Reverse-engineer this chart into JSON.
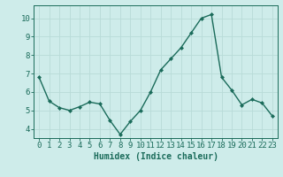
{
  "x": [
    0,
    1,
    2,
    3,
    4,
    5,
    6,
    7,
    8,
    9,
    10,
    11,
    12,
    13,
    14,
    15,
    16,
    17,
    18,
    19,
    20,
    21,
    22,
    23
  ],
  "y": [
    6.8,
    5.5,
    5.15,
    5.0,
    5.2,
    5.45,
    5.35,
    4.45,
    3.7,
    4.4,
    5.0,
    6.0,
    7.2,
    7.8,
    8.4,
    9.2,
    10.0,
    10.2,
    6.8,
    6.1,
    5.3,
    5.6,
    5.4,
    4.7
  ],
  "line_color": "#1a6b5a",
  "marker": "D",
  "marker_size": 2,
  "bg_color": "#ceecea",
  "grid_color": "#b8dbd8",
  "xlabel": "Humidex (Indice chaleur)",
  "ylim": [
    3.5,
    10.7
  ],
  "xlim": [
    -0.5,
    23.5
  ],
  "yticks": [
    4,
    5,
    6,
    7,
    8,
    9,
    10
  ],
  "xticks": [
    0,
    1,
    2,
    3,
    4,
    5,
    6,
    7,
    8,
    9,
    10,
    11,
    12,
    13,
    14,
    15,
    16,
    17,
    18,
    19,
    20,
    21,
    22,
    23
  ],
  "xtick_labels": [
    "0",
    "1",
    "2",
    "3",
    "4",
    "5",
    "6",
    "7",
    "8",
    "9",
    "10",
    "11",
    "12",
    "13",
    "14",
    "15",
    "16",
    "17",
    "18",
    "19",
    "20",
    "21",
    "22",
    "23"
  ],
  "line_width": 1.0,
  "xlabel_fontsize": 7,
  "tick_fontsize": 6.5
}
